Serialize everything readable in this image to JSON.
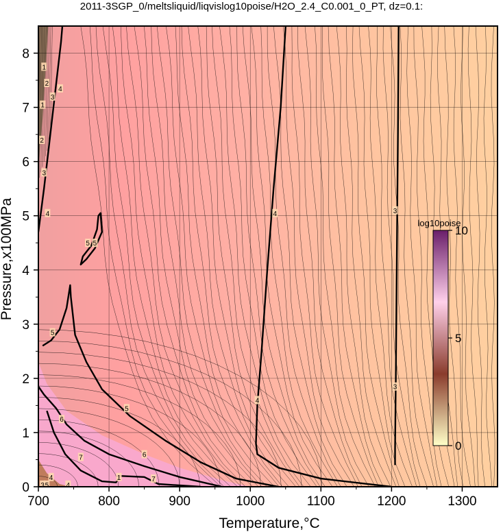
{
  "chart_data": {
    "type": "contour",
    "title": "2011-3SGP_0/meltsliquid/liqvislog10poise/H2O_2.4_C0.001_0_PT, dz=0.1:",
    "xlabel": "Temperature,°C",
    "ylabel": "Pressure,x100MPa",
    "xlim": [
      700,
      1350
    ],
    "ylim": [
      0,
      8.5
    ],
    "xticks": [
      "700",
      "800",
      "900",
      "1000",
      "1100",
      "1200",
      "1300"
    ],
    "yticks": [
      "0",
      "1",
      "2",
      "3",
      "4",
      "5",
      "6",
      "7",
      "8"
    ],
    "grid": true,
    "colorbar": {
      "title": "log10poise",
      "range": [
        0,
        10
      ],
      "ticks": [
        "0",
        "5",
        "10"
      ],
      "colors": [
        "#ffffc8",
        "#8a3c2c",
        "#ffd0ea",
        "#6a1e6a"
      ]
    },
    "field_colors": {
      "low_viscosity": "#ffcc9c",
      "mid_viscosity": "#ffa8a0",
      "high_viscosity": "#f8a8d0",
      "bold_contour": "#000000"
    },
    "bold_contours": [
      {
        "level": "3",
        "points": [
          [
            1205,
            0.4
          ],
          [
            1205,
            0.7
          ],
          [
            1206,
            2
          ],
          [
            1207,
            3.5
          ],
          [
            1208,
            5
          ],
          [
            1209,
            6.5
          ],
          [
            1210,
            8.5
          ]
        ]
      },
      {
        "level": "4",
        "points": [
          [
            1200,
            0
          ],
          [
            1100,
            0.15
          ],
          [
            1040,
            0.35
          ],
          [
            1010,
            0.6
          ],
          [
            1008,
            0.8
          ],
          [
            1010,
            1.5
          ],
          [
            1016,
            2.5
          ],
          [
            1024,
            4
          ],
          [
            1033,
            5.5
          ],
          [
            1043,
            7
          ],
          [
            1050,
            8.5
          ]
        ]
      },
      {
        "level": "5",
        "points": [
          [
            1040,
            0
          ],
          [
            980,
            0.15
          ],
          [
            930,
            0.45
          ],
          [
            880,
            0.85
          ],
          [
            830,
            1.3
          ],
          [
            790,
            1.8
          ],
          [
            768,
            2.3
          ],
          [
            752,
            2.8
          ],
          [
            746,
            3.5
          ],
          [
            745,
            3.72
          ],
          [
            740,
            3.3
          ],
          [
            730,
            2.9
          ],
          [
            718,
            2.7
          ],
          [
            706,
            2.6
          ]
        ]
      },
      {
        "level": "6",
        "points": [
          [
            960,
            0
          ],
          [
            900,
            0.18
          ],
          [
            850,
            0.38
          ],
          [
            800,
            0.6
          ],
          [
            765,
            0.85
          ],
          [
            740,
            1.15
          ],
          [
            725,
            1.45
          ],
          [
            708,
            1.7
          ],
          [
            700,
            1.85
          ]
        ]
      },
      {
        "level": "7",
        "points": [
          [
            930,
            0
          ],
          [
            870,
            0.05
          ],
          [
            850,
            0.18
          ],
          [
            815,
            0.2
          ],
          [
            810,
            0.08
          ],
          [
            790,
            0.1
          ],
          [
            760,
            0.3
          ],
          [
            738,
            0.6
          ],
          [
            722,
            1.0
          ],
          [
            712,
            1.4
          ]
        ]
      },
      {
        "level": "5",
        "closed": true,
        "points": [
          [
            788,
            5.05
          ],
          [
            790,
            4.7
          ],
          [
            780,
            4.4
          ],
          [
            768,
            4.2
          ],
          [
            760,
            4.1
          ],
          [
            763,
            4.25
          ],
          [
            775,
            4.45
          ],
          [
            783,
            4.75
          ],
          [
            785,
            5.0
          ]
        ]
      },
      {
        "level": "4",
        "points": [
          [
            700,
            4.7
          ],
          [
            708,
            5.5
          ],
          [
            716,
            6.4
          ],
          [
            724,
            7.3
          ],
          [
            732,
            8.2
          ],
          [
            734,
            8.5
          ]
        ]
      }
    ],
    "contour_labels": [
      {
        "text": "3",
        "x": 1205,
        "y": 5.1
      },
      {
        "text": "3",
        "x": 1205,
        "y": 1.85
      },
      {
        "text": "4",
        "x": 1035,
        "y": 5.05
      },
      {
        "text": "4",
        "x": 1010,
        "y": 1.6
      },
      {
        "text": "5",
        "x": 720,
        "y": 2.85
      },
      {
        "text": "5",
        "x": 825,
        "y": 1.45
      },
      {
        "text": "5",
        "x": 770,
        "y": 4.5
      },
      {
        "text": "5",
        "x": 780,
        "y": 4.5
      },
      {
        "text": "6",
        "x": 733,
        "y": 1.25
      },
      {
        "text": "6",
        "x": 850,
        "y": 0.6
      },
      {
        "text": "7",
        "x": 760,
        "y": 0.55
      },
      {
        "text": "7",
        "x": 863,
        "y": 0.15
      },
      {
        "text": "1",
        "x": 814,
        "y": 0.18
      },
      {
        "text": "4",
        "x": 713,
        "y": 5.05
      },
      {
        "text": "4",
        "x": 731,
        "y": 7.35
      },
      {
        "text": "3",
        "x": 708,
        "y": 5.8
      },
      {
        "text": "2",
        "x": 705,
        "y": 6.4
      },
      {
        "text": "3",
        "x": 720,
        "y": 7.2
      },
      {
        "text": "2",
        "x": 712,
        "y": 7.45
      },
      {
        "text": "1",
        "x": 708,
        "y": 7.75
      },
      {
        "text": "1",
        "x": 706,
        "y": 7.05
      },
      {
        "text": "4",
        "x": 718,
        "y": 0.18
      },
      {
        "text": "4",
        "x": 742,
        "y": 0.04
      },
      {
        "text": "3",
        "x": 706,
        "y": 0.04
      },
      {
        "text": "5",
        "x": 712,
        "y": 0.04
      }
    ]
  }
}
